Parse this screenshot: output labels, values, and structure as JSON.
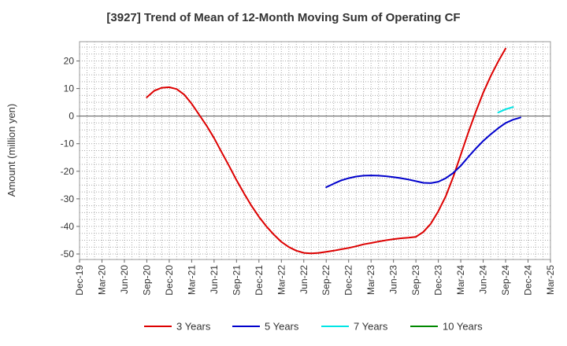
{
  "colors": {
    "3 Years": "#dd0000",
    "5 Years": "#0000cc",
    "7 Years": "#00e5e5",
    "10 Years": "#008800"
  },
  "chart_data": {
    "type": "line",
    "title": "[3927]  Trend of Mean of 12-Month Moving Sum of Operating CF",
    "xlabel": "",
    "ylabel": "Amount (million yen)",
    "ylim": [
      -52,
      27
    ],
    "yticks": [
      20,
      10,
      0,
      -10,
      -20,
      -30,
      -40,
      -50
    ],
    "xticks": [
      "Dec-19",
      "Mar-20",
      "Jun-20",
      "Sep-20",
      "Dec-20",
      "Mar-21",
      "Jun-21",
      "Sep-21",
      "Dec-21",
      "Mar-22",
      "Jun-22",
      "Sep-22",
      "Dec-22",
      "Mar-23",
      "Jun-23",
      "Sep-23",
      "Dec-23",
      "Mar-24",
      "Jun-24",
      "Sep-24",
      "Dec-24",
      "Mar-25"
    ],
    "legend_position": "bottom",
    "grid": true,
    "series": [
      {
        "name": "3 Years",
        "points": [
          [
            9,
            6.8
          ],
          [
            10,
            9.2
          ],
          [
            11,
            10.3
          ],
          [
            12,
            10.5
          ],
          [
            13,
            9.8
          ],
          [
            14,
            7.8
          ],
          [
            15,
            4.5
          ],
          [
            16,
            0.5
          ],
          [
            17,
            -3.5
          ],
          [
            18,
            -8
          ],
          [
            19,
            -13
          ],
          [
            20,
            -18
          ],
          [
            21,
            -23.2
          ],
          [
            22,
            -28
          ],
          [
            23,
            -32.5
          ],
          [
            24,
            -36.5
          ],
          [
            25,
            -40
          ],
          [
            26,
            -43
          ],
          [
            27,
            -45.6
          ],
          [
            28,
            -47.5
          ],
          [
            29,
            -48.8
          ],
          [
            30,
            -49.6
          ],
          [
            31,
            -49.8
          ],
          [
            32,
            -49.6
          ],
          [
            33,
            -49.2
          ],
          [
            34,
            -48.8
          ],
          [
            35,
            -48.3
          ],
          [
            36,
            -47.8
          ],
          [
            37,
            -47.2
          ],
          [
            38,
            -46.5
          ],
          [
            39,
            -46
          ],
          [
            40,
            -45.5
          ],
          [
            41,
            -45
          ],
          [
            42,
            -44.6
          ],
          [
            43,
            -44.3
          ],
          [
            44,
            -44.1
          ],
          [
            45,
            -43.8
          ],
          [
            46,
            -42
          ],
          [
            47,
            -39
          ],
          [
            48,
            -34.5
          ],
          [
            49,
            -29
          ],
          [
            50,
            -22
          ],
          [
            51,
            -14
          ],
          [
            52,
            -6
          ],
          [
            53,
            1.5
          ],
          [
            54,
            8.5
          ],
          [
            55,
            14.5
          ],
          [
            56,
            19.8
          ],
          [
            57,
            24.5
          ]
        ]
      },
      {
        "name": "5 Years",
        "points": [
          [
            33,
            -25.8
          ],
          [
            34,
            -24.5
          ],
          [
            35,
            -23.3
          ],
          [
            36,
            -22.5
          ],
          [
            37,
            -21.9
          ],
          [
            38,
            -21.6
          ],
          [
            39,
            -21.5
          ],
          [
            40,
            -21.6
          ],
          [
            41,
            -21.8
          ],
          [
            42,
            -22.1
          ],
          [
            43,
            -22.5
          ],
          [
            44,
            -23
          ],
          [
            45,
            -23.6
          ],
          [
            46,
            -24.2
          ],
          [
            47,
            -24.3
          ],
          [
            48,
            -23.8
          ],
          [
            49,
            -22.5
          ],
          [
            50,
            -20.6
          ],
          [
            51,
            -18
          ],
          [
            52,
            -14.8
          ],
          [
            53,
            -11.8
          ],
          [
            54,
            -9
          ],
          [
            55,
            -6.6
          ],
          [
            56,
            -4.4
          ],
          [
            57,
            -2.5
          ],
          [
            58,
            -1.3
          ],
          [
            59,
            -0.5
          ]
        ]
      },
      {
        "name": "7 Years",
        "points": [
          [
            56,
            1.3
          ],
          [
            57,
            2.5
          ],
          [
            58,
            3.3
          ]
        ]
      },
      {
        "name": "10 Years",
        "points": []
      }
    ]
  }
}
